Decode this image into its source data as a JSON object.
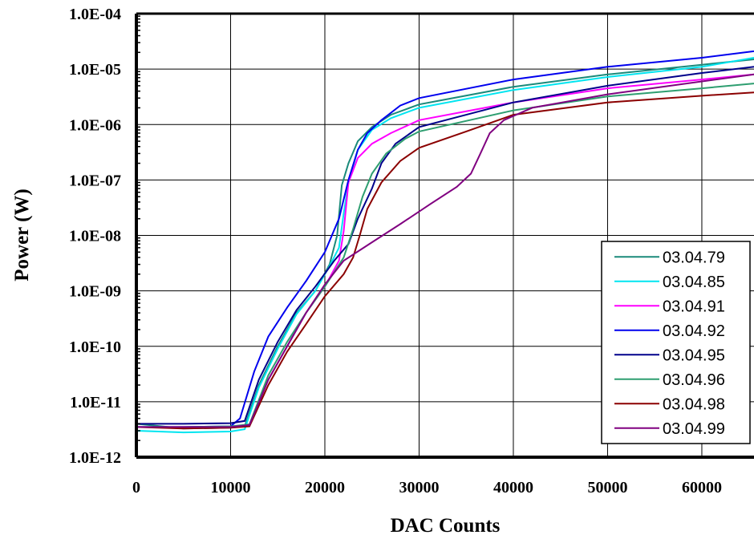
{
  "chart_data": {
    "type": "line",
    "title": "",
    "xlabel": "DAC Counts",
    "ylabel": "Power (W)",
    "xlim": [
      0,
      65535
    ],
    "ylim": [
      1e-12,
      0.0001
    ],
    "y_scale": "log",
    "grid": true,
    "legend_position": "lower-right",
    "x_ticks": [
      0,
      10000,
      20000,
      30000,
      40000,
      50000,
      60000
    ],
    "x_tick_labels": [
      "0",
      "10000",
      "20000",
      "30000",
      "40000",
      "50000",
      "60000"
    ],
    "y_ticks": [
      1e-12,
      1e-11,
      1e-10,
      1e-09,
      1e-08,
      1e-07,
      1e-06,
      1e-05,
      0.0001
    ],
    "y_tick_labels": [
      "1.0E-12",
      "1.0E-11",
      "1.0E-10",
      "1.0E-09",
      "1.0E-08",
      "1.0E-07",
      "1.0E-06",
      "1.0E-05",
      "1.0E-04"
    ],
    "series": [
      {
        "name": "03.04.79",
        "color": "#1a8a7a",
        "points": [
          [
            0,
            4e-12
          ],
          [
            5000,
            3.3e-12
          ],
          [
            10000,
            3.4e-12
          ],
          [
            11500,
            3.6e-12
          ],
          [
            13000,
            2e-11
          ],
          [
            15000,
            1e-10
          ],
          [
            17000,
            4e-10
          ],
          [
            19000,
            1e-09
          ],
          [
            20500,
            3e-09
          ],
          [
            21300,
            1e-08
          ],
          [
            21800,
            8e-08
          ],
          [
            22500,
            2e-07
          ],
          [
            23500,
            5e-07
          ],
          [
            25000,
            9e-07
          ],
          [
            27000,
            1.5e-06
          ],
          [
            30000,
            2.3e-06
          ],
          [
            40000,
            4.8e-06
          ],
          [
            50000,
            8e-06
          ],
          [
            60000,
            1.2e-05
          ],
          [
            65535,
            1.5e-05
          ]
        ]
      },
      {
        "name": "03.04.85",
        "color": "#00e5f0",
        "points": [
          [
            0,
            3e-12
          ],
          [
            5000,
            2.8e-12
          ],
          [
            10000,
            2.9e-12
          ],
          [
            11500,
            3.2e-12
          ],
          [
            13000,
            1.8e-11
          ],
          [
            15000,
            9e-11
          ],
          [
            17000,
            3.8e-10
          ],
          [
            19000,
            1e-09
          ],
          [
            20500,
            2.8e-09
          ],
          [
            21500,
            6e-09
          ],
          [
            22000,
            2.5e-08
          ],
          [
            22500,
            9e-08
          ],
          [
            23500,
            3.5e-07
          ],
          [
            25000,
            8e-07
          ],
          [
            27000,
            1.3e-06
          ],
          [
            30000,
            2e-06
          ],
          [
            40000,
            4.2e-06
          ],
          [
            50000,
            7.2e-06
          ],
          [
            60000,
            1.1e-05
          ],
          [
            65535,
            1.6e-05
          ]
        ]
      },
      {
        "name": "03.04.91",
        "color": "#ff00ff",
        "points": [
          [
            0,
            3.5e-12
          ],
          [
            5000,
            3.4e-12
          ],
          [
            10000,
            3.5e-12
          ],
          [
            12000,
            3.8e-12
          ],
          [
            14000,
            2.5e-11
          ],
          [
            16000,
            1e-10
          ],
          [
            18000,
            4e-10
          ],
          [
            20000,
            1.2e-09
          ],
          [
            21500,
            3.5e-09
          ],
          [
            22000,
            1.2e-08
          ],
          [
            22500,
            9e-08
          ],
          [
            23500,
            2.5e-07
          ],
          [
            25000,
            4.5e-07
          ],
          [
            27000,
            7e-07
          ],
          [
            30000,
            1.2e-06
          ],
          [
            40000,
            2.5e-06
          ],
          [
            50000,
            4.5e-06
          ],
          [
            60000,
            6.5e-06
          ],
          [
            65535,
            8e-06
          ]
        ]
      },
      {
        "name": "03.04.92",
        "color": "#0000ee",
        "points": [
          [
            0,
            3.5e-12
          ],
          [
            5000,
            3.5e-12
          ],
          [
            10000,
            3.6e-12
          ],
          [
            11000,
            5e-12
          ],
          [
            12500,
            3.5e-11
          ],
          [
            14000,
            1.5e-10
          ],
          [
            16000,
            5e-10
          ],
          [
            18000,
            1.5e-09
          ],
          [
            20000,
            5e-09
          ],
          [
            21500,
            2e-08
          ],
          [
            22500,
            1e-07
          ],
          [
            23500,
            3.5e-07
          ],
          [
            24500,
            7e-07
          ],
          [
            26000,
            1.2e-06
          ],
          [
            28000,
            2.2e-06
          ],
          [
            30000,
            3e-06
          ],
          [
            40000,
            6.5e-06
          ],
          [
            50000,
            1.1e-05
          ],
          [
            60000,
            1.6e-05
          ],
          [
            65535,
            2.1e-05
          ]
        ]
      },
      {
        "name": "03.04.95",
        "color": "#00008b",
        "points": [
          [
            0,
            4e-12
          ],
          [
            5000,
            4e-12
          ],
          [
            10000,
            4.1e-12
          ],
          [
            11500,
            4.5e-12
          ],
          [
            13000,
            2.5e-11
          ],
          [
            15000,
            1.2e-10
          ],
          [
            17000,
            4.5e-10
          ],
          [
            19000,
            1.2e-09
          ],
          [
            21000,
            3.5e-09
          ],
          [
            22500,
            7e-09
          ],
          [
            23500,
            2e-08
          ],
          [
            25000,
            7e-08
          ],
          [
            26000,
            2e-07
          ],
          [
            27500,
            4.5e-07
          ],
          [
            30000,
            9e-07
          ],
          [
            40000,
            2.5e-06
          ],
          [
            50000,
            5e-06
          ],
          [
            60000,
            8.5e-06
          ],
          [
            65535,
            1.1e-05
          ]
        ]
      },
      {
        "name": "03.04.96",
        "color": "#2e9e70",
        "points": [
          [
            0,
            3.5e-12
          ],
          [
            5000,
            3.5e-12
          ],
          [
            10000,
            3.6e-12
          ],
          [
            12000,
            3.9e-12
          ],
          [
            14000,
            3e-11
          ],
          [
            16000,
            1.2e-10
          ],
          [
            18000,
            4e-10
          ],
          [
            20000,
            1.2e-09
          ],
          [
            22000,
            4e-09
          ],
          [
            23000,
            1.3e-08
          ],
          [
            24000,
            5e-08
          ],
          [
            25000,
            1.3e-07
          ],
          [
            26500,
            3e-07
          ],
          [
            28500,
            5.5e-07
          ],
          [
            30000,
            7.5e-07
          ],
          [
            40000,
            1.8e-06
          ],
          [
            50000,
            3.2e-06
          ],
          [
            60000,
            4.5e-06
          ],
          [
            65535,
            5.5e-06
          ]
        ]
      },
      {
        "name": "03.04.98",
        "color": "#8b0000",
        "points": [
          [
            0,
            3.5e-12
          ],
          [
            5000,
            3.3e-12
          ],
          [
            10000,
            3.4e-12
          ],
          [
            12000,
            3.6e-12
          ],
          [
            14000,
            2e-11
          ],
          [
            16000,
            8e-11
          ],
          [
            18000,
            2.5e-10
          ],
          [
            20000,
            8e-10
          ],
          [
            22000,
            2e-09
          ],
          [
            23000,
            4e-09
          ],
          [
            23700,
            1e-08
          ],
          [
            24500,
            3e-08
          ],
          [
            26000,
            9e-08
          ],
          [
            28000,
            2.2e-07
          ],
          [
            30000,
            3.8e-07
          ],
          [
            35000,
            7.5e-07
          ],
          [
            40000,
            1.5e-06
          ],
          [
            50000,
            2.5e-06
          ],
          [
            60000,
            3.3e-06
          ],
          [
            65535,
            3.8e-06
          ]
        ]
      },
      {
        "name": "03.04.99",
        "color": "#800080",
        "points": [
          [
            0,
            3.5e-12
          ],
          [
            5000,
            3.5e-12
          ],
          [
            10000,
            3.5e-12
          ],
          [
            12000,
            3.8e-12
          ],
          [
            14000,
            2.5e-11
          ],
          [
            16000,
            1e-10
          ],
          [
            18000,
            4e-10
          ],
          [
            20000,
            1.3e-09
          ],
          [
            22000,
            3.5e-09
          ],
          [
            25000,
            7.5e-09
          ],
          [
            28000,
            1.6e-08
          ],
          [
            31000,
            3.5e-08
          ],
          [
            34000,
            7.5e-08
          ],
          [
            35500,
            1.3e-07
          ],
          [
            36500,
            3e-07
          ],
          [
            37500,
            7e-07
          ],
          [
            39000,
            1.2e-06
          ],
          [
            42000,
            2e-06
          ],
          [
            50000,
            3.5e-06
          ],
          [
            60000,
            6e-06
          ],
          [
            65535,
            8e-06
          ]
        ]
      }
    ]
  }
}
